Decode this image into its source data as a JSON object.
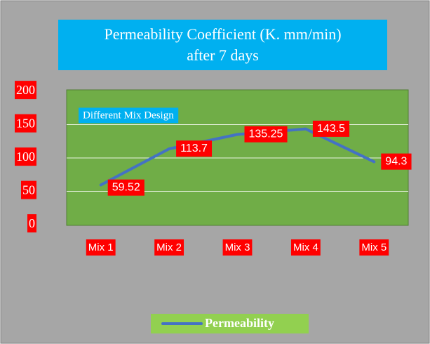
{
  "chart_data": {
    "type": "line",
    "title": "Permeability Coefficient (K. mm/min) after 7 days",
    "annotation": "Different Mix Design",
    "categories": [
      "Mix 1",
      "Mix 2",
      "Mix 3",
      "Mix 4",
      "Mix 5"
    ],
    "series": [
      {
        "name": "Permeability",
        "color": "#4472c4",
        "values": [
          59.52,
          113.7,
          135.25,
          143.5,
          94.3
        ]
      }
    ],
    "ylim": [
      0,
      200
    ],
    "yticks": [
      0,
      50,
      100,
      150,
      200
    ],
    "grid": true,
    "legend": "bottom"
  }
}
